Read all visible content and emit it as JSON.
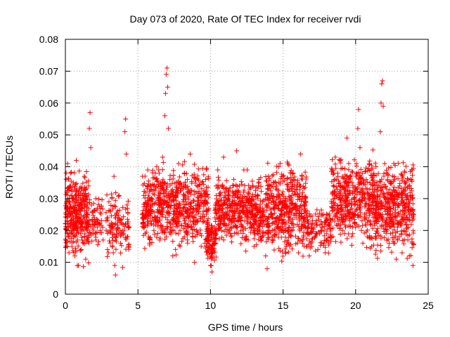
{
  "chart_data": {
    "type": "scatter",
    "title": "Day 073 of 2020, Rate Of TEC Index for receiver rvdi",
    "xlabel": "GPS time / hours",
    "ylabel": "ROTI / TECUs",
    "xlim": [
      0,
      25
    ],
    "ylim": [
      0,
      0.08
    ],
    "x_ticks": [
      0,
      5,
      10,
      15,
      20,
      25
    ],
    "x_tick_labels": [
      "0",
      "5",
      "10",
      "15",
      "20",
      "25"
    ],
    "y_ticks": [
      0,
      0.01,
      0.02,
      0.03,
      0.04,
      0.05,
      0.06,
      0.07,
      0.08
    ],
    "y_tick_labels": [
      "0",
      "0.01",
      "0.02",
      "0.03",
      "0.04",
      "0.05",
      "0.06",
      "0.07",
      "0.08"
    ],
    "grid": true,
    "marker": "+",
    "color": "#ff0000",
    "series": [
      {
        "name": "ROTI",
        "points_xy": [
          [
            0.05,
            0.025
          ],
          [
            0.1,
            0.032
          ],
          [
            0.15,
            0.041
          ],
          [
            0.2,
            0.018
          ],
          [
            0.25,
            0.013
          ],
          [
            0.3,
            0.027
          ],
          [
            0.35,
            0.038
          ],
          [
            0.4,
            0.022
          ],
          [
            0.45,
            0.015
          ],
          [
            0.5,
            0.03
          ],
          [
            0.55,
            0.035
          ],
          [
            0.6,
            0.02
          ],
          [
            0.65,
            0.012
          ],
          [
            0.7,
            0.028
          ],
          [
            0.75,
            0.042
          ],
          [
            0.8,
            0.024
          ],
          [
            0.85,
            0.017
          ],
          [
            0.9,
            0.009
          ],
          [
            0.95,
            0.031
          ],
          [
            1.0,
            0.026
          ],
          [
            1.05,
            0.019
          ],
          [
            1.1,
            0.014
          ],
          [
            1.15,
            0.033
          ],
          [
            1.2,
            0.023
          ],
          [
            1.25,
            0.016
          ],
          [
            1.3,
            0.037
          ],
          [
            1.35,
            0.021
          ],
          [
            1.4,
            0.011
          ],
          [
            1.45,
            0.029
          ],
          [
            1.5,
            0.025
          ],
          [
            1.55,
            0.018
          ],
          [
            1.6,
            0.034
          ],
          [
            1.65,
            0.052
          ],
          [
            1.7,
            0.057
          ],
          [
            1.75,
            0.046
          ],
          [
            1.8,
            0.028
          ],
          [
            1.85,
            0.022
          ],
          [
            1.9,
            0.019
          ],
          [
            2.0,
            0.024
          ],
          [
            2.1,
            0.03
          ],
          [
            2.2,
            0.027
          ],
          [
            2.4,
            0.02
          ],
          [
            2.6,
            0.017
          ],
          [
            2.8,
            0.023
          ],
          [
            2.9,
            0.014
          ],
          [
            3.0,
            0.029
          ],
          [
            3.1,
            0.026
          ],
          [
            3.2,
            0.021
          ],
          [
            3.3,
            0.013
          ],
          [
            3.35,
            0.037
          ],
          [
            3.4,
            0.009
          ],
          [
            3.45,
            0.006
          ],
          [
            3.5,
            0.018
          ],
          [
            3.6,
            0.024
          ],
          [
            3.7,
            0.031
          ],
          [
            3.8,
            0.016
          ],
          [
            3.9,
            0.022
          ],
          [
            4.0,
            0.019
          ],
          [
            4.1,
            0.051
          ],
          [
            4.15,
            0.055
          ],
          [
            4.2,
            0.044
          ],
          [
            4.25,
            0.028
          ],
          [
            4.3,
            0.018
          ],
          [
            4.35,
            0.015
          ],
          [
            4.4,
            0.021
          ],
          [
            5.3,
            0.025
          ],
          [
            5.4,
            0.031
          ],
          [
            5.5,
            0.019
          ],
          [
            5.6,
            0.027
          ],
          [
            5.7,
            0.022
          ],
          [
            5.8,
            0.016
          ],
          [
            5.9,
            0.034
          ],
          [
            6.0,
            0.028
          ],
          [
            6.1,
            0.02
          ],
          [
            6.2,
            0.038
          ],
          [
            6.3,
            0.024
          ],
          [
            6.4,
            0.03
          ],
          [
            6.5,
            0.017
          ],
          [
            6.6,
            0.026
          ],
          [
            6.7,
            0.043
          ],
          [
            6.8,
            0.035
          ],
          [
            6.85,
            0.056
          ],
          [
            6.9,
            0.063
          ],
          [
            6.95,
            0.069
          ],
          [
            7.0,
            0.071
          ],
          [
            7.05,
            0.065
          ],
          [
            7.1,
            0.052
          ],
          [
            7.2,
            0.036
          ],
          [
            7.3,
            0.029
          ],
          [
            7.4,
            0.012
          ],
          [
            7.5,
            0.023
          ],
          [
            7.6,
            0.031
          ],
          [
            7.7,
            0.027
          ],
          [
            7.8,
            0.041
          ],
          [
            7.9,
            0.02
          ],
          [
            8.0,
            0.025
          ],
          [
            8.1,
            0.033
          ],
          [
            8.2,
            0.018
          ],
          [
            8.3,
            0.029
          ],
          [
            8.4,
            0.036
          ],
          [
            8.5,
            0.024
          ],
          [
            8.6,
            0.044
          ],
          [
            8.7,
            0.021
          ],
          [
            8.8,
            0.027
          ],
          [
            8.9,
            0.01
          ],
          [
            9.0,
            0.032
          ],
          [
            9.1,
            0.023
          ],
          [
            9.2,
            0.028
          ],
          [
            9.3,
            0.019
          ],
          [
            9.4,
            0.035
          ],
          [
            9.5,
            0.026
          ],
          [
            9.6,
            0.016
          ],
          [
            9.7,
            0.029
          ],
          [
            9.8,
            0.022
          ],
          [
            9.9,
            0.013
          ],
          [
            10.0,
            0.009
          ],
          [
            10.1,
            0.007
          ],
          [
            10.2,
            0.018
          ],
          [
            10.3,
            0.024
          ],
          [
            10.4,
            0.031
          ],
          [
            10.5,
            0.039
          ],
          [
            10.6,
            0.027
          ],
          [
            10.7,
            0.021
          ],
          [
            10.8,
            0.034
          ],
          [
            10.9,
            0.043
          ],
          [
            11.0,
            0.029
          ],
          [
            11.1,
            0.025
          ],
          [
            11.2,
            0.031
          ],
          [
            11.3,
            0.02
          ],
          [
            11.4,
            0.027
          ],
          [
            11.5,
            0.023
          ],
          [
            11.6,
            0.036
          ],
          [
            11.7,
            0.028
          ],
          [
            11.8,
            0.045
          ],
          [
            11.9,
            0.019
          ],
          [
            12.0,
            0.026
          ],
          [
            12.1,
            0.022
          ],
          [
            12.2,
            0.03
          ],
          [
            12.3,
            0.039
          ],
          [
            12.4,
            0.018
          ],
          [
            12.5,
            0.024
          ],
          [
            12.6,
            0.017
          ],
          [
            12.7,
            0.033
          ],
          [
            12.8,
            0.021
          ],
          [
            12.9,
            0.028
          ],
          [
            13.0,
            0.015
          ],
          [
            13.1,
            0.025
          ],
          [
            13.2,
            0.02
          ],
          [
            13.3,
            0.034
          ],
          [
            13.4,
            0.023
          ],
          [
            13.5,
            0.017
          ],
          [
            13.6,
            0.029
          ],
          [
            13.7,
            0.022
          ],
          [
            13.8,
            0.012
          ],
          [
            13.9,
            0.008
          ],
          [
            14.0,
            0.019
          ],
          [
            14.1,
            0.027
          ],
          [
            14.2,
            0.031
          ],
          [
            14.3,
            0.024
          ],
          [
            14.4,
            0.018
          ],
          [
            14.5,
            0.035
          ],
          [
            14.6,
            0.021
          ],
          [
            14.7,
            0.028
          ],
          [
            14.8,
            0.03
          ],
          [
            14.9,
            0.025
          ],
          [
            15.0,
            0.037
          ],
          [
            15.1,
            0.022
          ],
          [
            15.2,
            0.029
          ],
          [
            15.3,
            0.033
          ],
          [
            15.4,
            0.019
          ],
          [
            15.5,
            0.026
          ],
          [
            15.6,
            0.031
          ],
          [
            15.7,
            0.021
          ],
          [
            15.8,
            0.028
          ],
          [
            15.9,
            0.024
          ],
          [
            16.0,
            0.035
          ],
          [
            16.1,
            0.027
          ],
          [
            16.2,
            0.044
          ],
          [
            16.3,
            0.022
          ],
          [
            16.4,
            0.018
          ],
          [
            16.5,
            0.03
          ],
          [
            16.6,
            0.015
          ],
          [
            16.7,
            0.019
          ],
          [
            16.8,
            0.012
          ],
          [
            16.9,
            0.016
          ],
          [
            17.0,
            0.021
          ],
          [
            17.2,
            0.018
          ],
          [
            17.4,
            0.014
          ],
          [
            17.6,
            0.02
          ],
          [
            17.8,
            0.025
          ],
          [
            17.9,
            0.013
          ],
          [
            18.0,
            0.017
          ],
          [
            18.2,
            0.022
          ],
          [
            18.4,
            0.026
          ],
          [
            18.5,
            0.038
          ],
          [
            18.6,
            0.043
          ],
          [
            18.7,
            0.031
          ],
          [
            18.8,
            0.027
          ],
          [
            18.9,
            0.035
          ],
          [
            19.0,
            0.024
          ],
          [
            19.1,
            0.02
          ],
          [
            19.2,
            0.033
          ],
          [
            19.3,
            0.029
          ],
          [
            19.4,
            0.049
          ],
          [
            19.5,
            0.036
          ],
          [
            19.6,
            0.023
          ],
          [
            19.7,
            0.028
          ],
          [
            19.8,
            0.019
          ],
          [
            19.9,
            0.025
          ],
          [
            20.0,
            0.021
          ],
          [
            20.1,
            0.038
          ],
          [
            20.15,
            0.052
          ],
          [
            20.2,
            0.058
          ],
          [
            20.3,
            0.046
          ],
          [
            20.4,
            0.02
          ],
          [
            20.5,
            0.016
          ],
          [
            20.6,
            0.024
          ],
          [
            20.7,
            0.033
          ],
          [
            20.8,
            0.018
          ],
          [
            20.9,
            0.027
          ],
          [
            21.0,
            0.022
          ],
          [
            21.1,
            0.015
          ],
          [
            21.2,
            0.03
          ],
          [
            21.3,
            0.025
          ],
          [
            21.4,
            0.04
          ],
          [
            21.5,
            0.028
          ],
          [
            21.6,
            0.034
          ],
          [
            21.7,
            0.051
          ],
          [
            21.75,
            0.06
          ],
          [
            21.8,
            0.066
          ],
          [
            21.85,
            0.067
          ],
          [
            21.9,
            0.059
          ],
          [
            22.0,
            0.041
          ],
          [
            22.1,
            0.029
          ],
          [
            22.2,
            0.036
          ],
          [
            22.3,
            0.024
          ],
          [
            22.4,
            0.019
          ],
          [
            22.5,
            0.032
          ],
          [
            22.6,
            0.027
          ],
          [
            22.7,
            0.016
          ],
          [
            22.8,
            0.011
          ],
          [
            22.9,
            0.022
          ],
          [
            23.0,
            0.018
          ],
          [
            23.1,
            0.026
          ],
          [
            23.2,
            0.013
          ],
          [
            23.3,
            0.02
          ],
          [
            23.4,
            0.031
          ],
          [
            23.5,
            0.024
          ],
          [
            23.6,
            0.017
          ],
          [
            23.7,
            0.012
          ],
          [
            23.8,
            0.036
          ],
          [
            23.85,
            0.039
          ],
          [
            23.9,
            0.016
          ],
          [
            23.95,
            0.009
          ],
          [
            24.0,
            0.025
          ]
        ],
        "dense_bands": [
          {
            "x_range": [
              0.0,
              1.6
            ],
            "y_range": [
              0.008,
              0.042
            ],
            "count": 320
          },
          {
            "x_range": [
              1.6,
              2.6
            ],
            "y_range": [
              0.012,
              0.035
            ],
            "count": 60
          },
          {
            "x_range": [
              2.8,
              4.4
            ],
            "y_range": [
              0.006,
              0.037
            ],
            "count": 110
          },
          {
            "x_range": [
              5.3,
              9.9
            ],
            "y_range": [
              0.011,
              0.044
            ],
            "count": 640
          },
          {
            "x_range": [
              9.7,
              10.4
            ],
            "y_range": [
              0.007,
              0.027
            ],
            "count": 90
          },
          {
            "x_range": [
              10.3,
              13.8
            ],
            "y_range": [
              0.012,
              0.04
            ],
            "count": 460
          },
          {
            "x_range": [
              13.8,
              16.6
            ],
            "y_range": [
              0.008,
              0.045
            ],
            "count": 420
          },
          {
            "x_range": [
              16.6,
              18.3
            ],
            "y_range": [
              0.011,
              0.029
            ],
            "count": 110
          },
          {
            "x_range": [
              18.3,
              21.5
            ],
            "y_range": [
              0.012,
              0.048
            ],
            "count": 440
          },
          {
            "x_range": [
              21.3,
              24.0
            ],
            "y_range": [
              0.009,
              0.045
            ],
            "count": 420
          }
        ]
      }
    ]
  }
}
